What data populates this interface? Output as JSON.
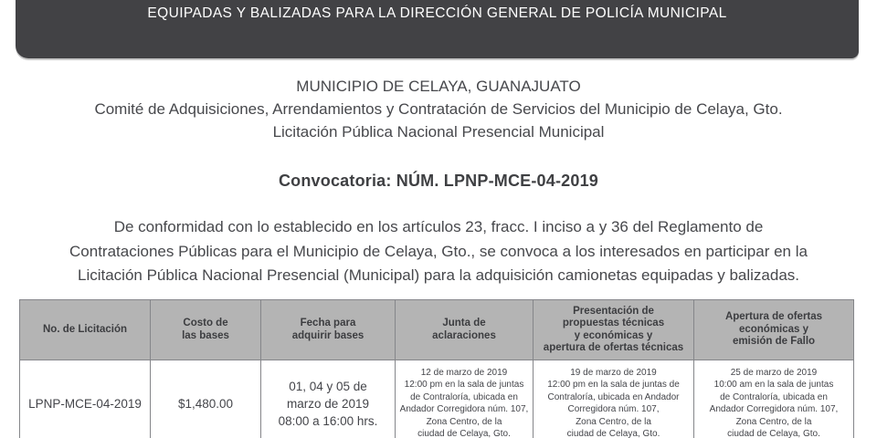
{
  "banner": {
    "title": "EQUIPADAS Y BALIZADAS PARA LA DIRECCIÓN GENERAL DE POLICÍA MUNICIPAL",
    "bg_color": "#424245",
    "text_color": "#ffffff"
  },
  "header": {
    "municipality": "MUNICIPIO DE CELAYA, GUANAJUATO",
    "committee": "Comité de Adquisiciones, Arrendamientos y Contratación de Servicios del Municipio de Celaya, Gto.",
    "procedure": "Licitación Pública Nacional Presencial Municipal",
    "convocatoria": "Convocatoria: NÚM. LPNP-MCE-04-2019"
  },
  "intro": {
    "line1": "De conformidad con lo establecido en los artículos 23, fracc. I inciso a y 36 del Reglamento de",
    "line2": "Contrataciones Públicas para el Municipio de Celaya, Gto., se convoca a los interesados en participar en la",
    "line3": "Licitación Pública Nacional Presencial (Municipal) para la adquisición camionetas equipadas y balizadas."
  },
  "table": {
    "header_bg": "#b4b4b4",
    "border_color": "#85868a",
    "columns": [
      {
        "label": "No. de Licitación"
      },
      {
        "label": "Costo de\nlas bases"
      },
      {
        "label": "Fecha para\nadquirir bases"
      },
      {
        "label": "Junta de\naclaraciones"
      },
      {
        "label": "Presentación de\npropuestas técnicas\ny económicas y\napertura de ofertas técnicas"
      },
      {
        "label": "Apertura de ofertas\neconómicas y\nemisión de Fallo"
      }
    ],
    "rows": [
      {
        "licitacion": "LPNP-MCE-04-2019",
        "costo": "$1,480.00",
        "fecha_bases": "01, 04 y 05 de\nmarzo de 2019\n08:00 a 16:00 hrs.",
        "junta": "12 de marzo de 2019\n12:00 pm en la sala de juntas\nde Contraloría, ubicada en\nAndador Corregidora núm. 107,\nZona Centro, de la\nciudad de Celaya, Gto.",
        "presentacion": "19 de marzo de 2019\n12:00 pm en la sala de juntas de\nContraloría, ubicada en Andador\nCorregidora núm. 107,\nZona Centro, de la\nciudad de Celaya, Gto.",
        "apertura": "25 de marzo de 2019\n10:00 am en la sala de juntas\nde Contraloría, ubicada en\nAndador Corregidora núm. 107,\nZona Centro, de la\nciudad de Celaya, Gto."
      }
    ]
  }
}
